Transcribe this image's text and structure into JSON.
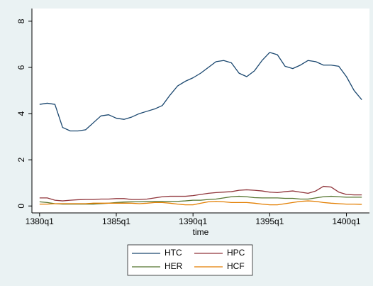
{
  "chart_data": {
    "type": "line",
    "x_label": "time",
    "x": [
      1380,
      1380.5,
      1381,
      1381.5,
      1382,
      1382.5,
      1383,
      1383.5,
      1384,
      1384.5,
      1385,
      1385.5,
      1386,
      1386.5,
      1387,
      1387.5,
      1388,
      1388.5,
      1389,
      1389.5,
      1390,
      1390.5,
      1391,
      1391.5,
      1392,
      1392.5,
      1393,
      1393.5,
      1394,
      1394.5,
      1395,
      1395.5,
      1396,
      1396.5,
      1397,
      1397.5,
      1398,
      1398.5,
      1399,
      1399.5,
      1400,
      1400.5,
      1401
    ],
    "series": [
      {
        "name": "HTC",
        "color": "#1a476f",
        "values": [
          4.4,
          4.45,
          4.4,
          3.4,
          3.25,
          3.25,
          3.3,
          3.6,
          3.9,
          3.95,
          3.8,
          3.75,
          3.85,
          4.0,
          4.1,
          4.2,
          4.35,
          4.8,
          5.2,
          5.4,
          5.55,
          5.75,
          6.0,
          6.25,
          6.3,
          6.2,
          5.75,
          5.6,
          5.85,
          6.3,
          6.65,
          6.55,
          6.05,
          5.95,
          6.1,
          6.3,
          6.25,
          6.1,
          6.1,
          6.05,
          5.6,
          5.0,
          4.6
        ]
      },
      {
        "name": "HPC",
        "color": "#90353b",
        "values": [
          0.35,
          0.35,
          0.25,
          0.22,
          0.25,
          0.27,
          0.28,
          0.28,
          0.3,
          0.3,
          0.32,
          0.32,
          0.28,
          0.28,
          0.3,
          0.35,
          0.4,
          0.42,
          0.42,
          0.42,
          0.45,
          0.5,
          0.55,
          0.58,
          0.6,
          0.62,
          0.68,
          0.7,
          0.68,
          0.65,
          0.6,
          0.58,
          0.62,
          0.65,
          0.6,
          0.55,
          0.65,
          0.85,
          0.82,
          0.6,
          0.5,
          0.48,
          0.48
        ]
      },
      {
        "name": "HER",
        "color": "#55752f",
        "values": [
          0.18,
          0.15,
          0.1,
          0.08,
          0.08,
          0.08,
          0.08,
          0.08,
          0.1,
          0.12,
          0.15,
          0.17,
          0.18,
          0.18,
          0.2,
          0.2,
          0.2,
          0.2,
          0.2,
          0.22,
          0.25,
          0.25,
          0.28,
          0.3,
          0.35,
          0.4,
          0.42,
          0.4,
          0.36,
          0.35,
          0.35,
          0.35,
          0.33,
          0.33,
          0.3,
          0.3,
          0.35,
          0.4,
          0.42,
          0.4,
          0.38,
          0.38,
          0.38
        ]
      },
      {
        "name": "HCF",
        "color": "#e37e00",
        "values": [
          0.08,
          0.08,
          0.1,
          0.1,
          0.1,
          0.1,
          0.1,
          0.12,
          0.12,
          0.12,
          0.12,
          0.12,
          0.12,
          0.1,
          0.12,
          0.15,
          0.15,
          0.12,
          0.08,
          0.05,
          0.05,
          0.12,
          0.18,
          0.2,
          0.18,
          0.15,
          0.15,
          0.15,
          0.12,
          0.08,
          0.05,
          0.05,
          0.1,
          0.15,
          0.2,
          0.22,
          0.2,
          0.15,
          0.12,
          0.1,
          0.08,
          0.08,
          0.07
        ]
      }
    ],
    "xlim": [
      1379.5,
      1401.5
    ],
    "xticks": [
      {
        "value": 1380,
        "label": "1380q1"
      },
      {
        "value": 1385,
        "label": "1385q1"
      },
      {
        "value": 1390,
        "label": "1390q1"
      },
      {
        "value": 1395,
        "label": "1395q1"
      },
      {
        "value": 1400,
        "label": "1400q1"
      }
    ],
    "ylim": [
      -0.3,
      8.55
    ],
    "yticks": [
      0,
      2,
      4,
      6,
      8
    ],
    "grid": false,
    "legend_position": "bottom"
  }
}
